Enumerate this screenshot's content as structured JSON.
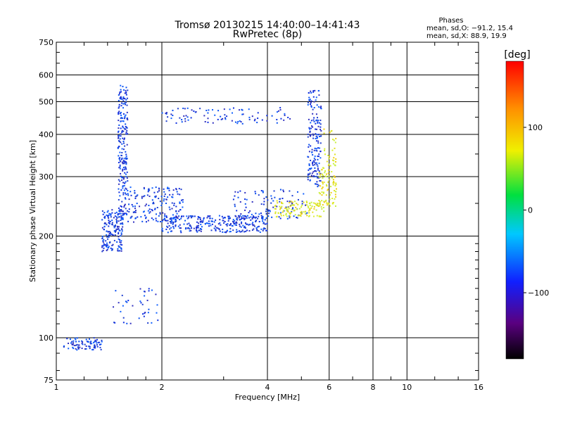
{
  "chart_data": {
    "type": "scatter",
    "title": "Tromsø 20130215 14:40:00–14:41:43",
    "subtitle": "RwPretec (8p)",
    "xlabel": "Frequency [MHz]",
    "ylabel": "Stationary phase Virtual Height [km]",
    "x_scale": "log",
    "y_scale": "log",
    "xlim": [
      1,
      16
    ],
    "ylim": [
      75,
      750
    ],
    "x_ticks": [
      {
        "value": 1,
        "label": "1"
      },
      {
        "value": 2,
        "label": "2"
      },
      {
        "value": 4,
        "label": "4"
      },
      {
        "value": 6,
        "label": "6"
      },
      {
        "value": 8,
        "label": "8"
      },
      {
        "value": 10,
        "label": "10"
      },
      {
        "value": 16,
        "label": "16"
      }
    ],
    "y_ticks": [
      {
        "value": 75,
        "label": "75"
      },
      {
        "value": 100,
        "label": "100"
      },
      {
        "value": 200,
        "label": "200"
      },
      {
        "value": 300,
        "label": "300"
      },
      {
        "value": 400,
        "label": "400"
      },
      {
        "value": 500,
        "label": "500"
      },
      {
        "value": 600,
        "label": "600"
      },
      {
        "value": 750,
        "label": "750"
      }
    ],
    "grid": true,
    "legend": {
      "title": "Phases",
      "lines": [
        "mean, sd,O: −91.2, 15.4",
        "mean, sd,X:  88.9, 19.9"
      ],
      "placement": "top-right"
    },
    "colorbar": {
      "unit_label": "[deg]",
      "range": [
        -180,
        180
      ],
      "ticks": [
        {
          "value": 100,
          "label": "100"
        },
        {
          "value": 0,
          "label": "0"
        },
        {
          "value": -100,
          "label": "−100"
        }
      ],
      "colormap": "rainbow (black-purple-blue-cyan-green-yellow-orange-red)"
    },
    "series": [
      {
        "name": "O-mode (blue)",
        "color": "#1030e0",
        "clusters": [
          {
            "x": [
              1.05,
              1.35
            ],
            "y": [
              92,
              100
            ],
            "n": 80
          },
          {
            "x": [
              1.35,
              1.55
            ],
            "y": [
              180,
              240
            ],
            "n": 170
          },
          {
            "x": [
              1.5,
              1.6
            ],
            "y": [
              230,
              560
            ],
            "n": 220
          },
          {
            "x": [
              1.6,
              2.3
            ],
            "y": [
              220,
              280
            ],
            "n": 160
          },
          {
            "x": [
              2.0,
              4.0
            ],
            "y": [
              205,
              230
            ],
            "n": 300
          },
          {
            "x": [
              3.2,
              5.2
            ],
            "y": [
              225,
              275
            ],
            "n": 100
          },
          {
            "x": [
              2.0,
              4.8
            ],
            "y": [
              430,
              480
            ],
            "n": 90
          },
          {
            "x": [
              5.2,
              5.7
            ],
            "y": [
              280,
              540
            ],
            "n": 170
          },
          {
            "x": [
              1.45,
              1.95
            ],
            "y": [
              110,
              140
            ],
            "n": 40
          }
        ]
      },
      {
        "name": "X-mode (yellow)",
        "color": "#e0e020",
        "clusters": [
          {
            "x": [
              4.2,
              5.8
            ],
            "y": [
              228,
              255
            ],
            "n": 120
          },
          {
            "x": [
              5.6,
              6.3
            ],
            "y": [
              245,
              320
            ],
            "n": 80
          },
          {
            "x": [
              5.8,
              6.3
            ],
            "y": [
              320,
              420
            ],
            "n": 30
          }
        ]
      }
    ]
  }
}
